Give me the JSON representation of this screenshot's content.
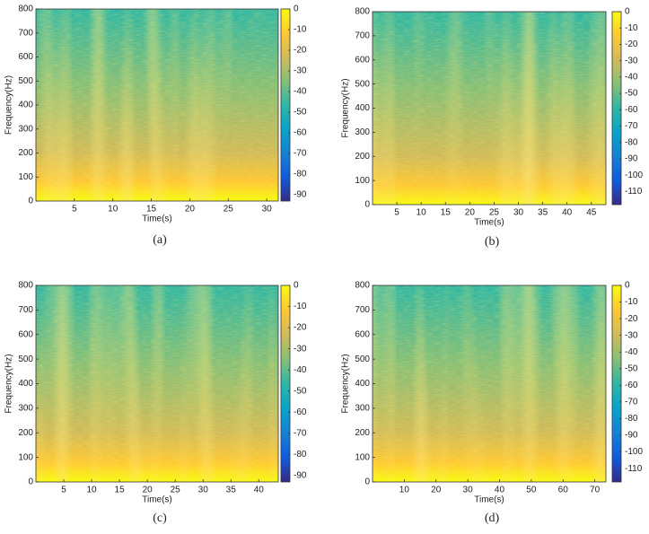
{
  "chart_data": [
    {
      "type": "spectrogram",
      "caption": "(a)",
      "xlabel": "Time(s)",
      "ylabel": "Frequency(Hz)",
      "xlim": [
        0,
        31.5
      ],
      "ylim": [
        0,
        800
      ],
      "xticks": [
        5,
        10,
        15,
        20,
        25,
        30
      ],
      "yticks": [
        0,
        100,
        200,
        300,
        400,
        500,
        600,
        700,
        800
      ],
      "colorbar": {
        "lim": [
          -93,
          0
        ],
        "ticks": [
          0,
          -10,
          -20,
          -30,
          -40,
          -50,
          -60,
          -70,
          -80,
          -90
        ]
      },
      "colormap": [
        "#352a87",
        "#0f5cdd",
        "#1481d6",
        "#06a4ca",
        "#2eb7a4",
        "#87bf77",
        "#d1bb59",
        "#fec832",
        "#f9fb0e"
      ]
    },
    {
      "type": "spectrogram",
      "caption": "(b)",
      "xlabel": "Time(s)",
      "ylabel": "Frequency(Hz)",
      "xlim": [
        0,
        48
      ],
      "ylim": [
        0,
        800
      ],
      "xticks": [
        5,
        10,
        15,
        20,
        25,
        30,
        35,
        40,
        45
      ],
      "yticks": [
        0,
        100,
        200,
        300,
        400,
        500,
        600,
        700,
        800
      ],
      "colorbar": {
        "lim": [
          -118,
          0
        ],
        "ticks": [
          0,
          -10,
          -20,
          -30,
          -40,
          -50,
          -60,
          -70,
          -80,
          -90,
          -100,
          -110
        ]
      },
      "colormap": [
        "#352a87",
        "#0f5cdd",
        "#1481d6",
        "#06a4ca",
        "#2eb7a4",
        "#87bf77",
        "#d1bb59",
        "#fec832",
        "#f9fb0e"
      ]
    },
    {
      "type": "spectrogram",
      "caption": "(c)",
      "xlabel": "Time(s)",
      "ylabel": "Frequency(Hz)",
      "xlim": [
        0,
        43.5
      ],
      "ylim": [
        0,
        800
      ],
      "xticks": [
        5,
        10,
        15,
        20,
        25,
        30,
        35,
        40
      ],
      "yticks": [
        0,
        100,
        200,
        300,
        400,
        500,
        600,
        700,
        800
      ],
      "colorbar": {
        "lim": [
          -93,
          0
        ],
        "ticks": [
          0,
          -10,
          -20,
          -30,
          -40,
          -50,
          -60,
          -70,
          -80,
          -90
        ]
      },
      "colormap": [
        "#352a87",
        "#0f5cdd",
        "#1481d6",
        "#06a4ca",
        "#2eb7a4",
        "#87bf77",
        "#d1bb59",
        "#fec832",
        "#f9fb0e"
      ]
    },
    {
      "type": "spectrogram",
      "caption": "(d)",
      "xlabel": "Time(s)",
      "ylabel": "Frequency(Hz)",
      "xlim": [
        0,
        73.5
      ],
      "ylim": [
        0,
        800
      ],
      "xticks": [
        10,
        20,
        30,
        40,
        50,
        60,
        70
      ],
      "yticks": [
        0,
        100,
        200,
        300,
        400,
        500,
        600,
        700,
        800
      ],
      "colorbar": {
        "lim": [
          -118,
          0
        ],
        "ticks": [
          0,
          -10,
          -20,
          -30,
          -40,
          -50,
          -60,
          -70,
          -80,
          -90,
          -100,
          -110
        ]
      },
      "colormap": [
        "#352a87",
        "#0f5cdd",
        "#1481d6",
        "#06a4ca",
        "#2eb7a4",
        "#87bf77",
        "#d1bb59",
        "#fec832",
        "#f9fb0e"
      ]
    }
  ]
}
